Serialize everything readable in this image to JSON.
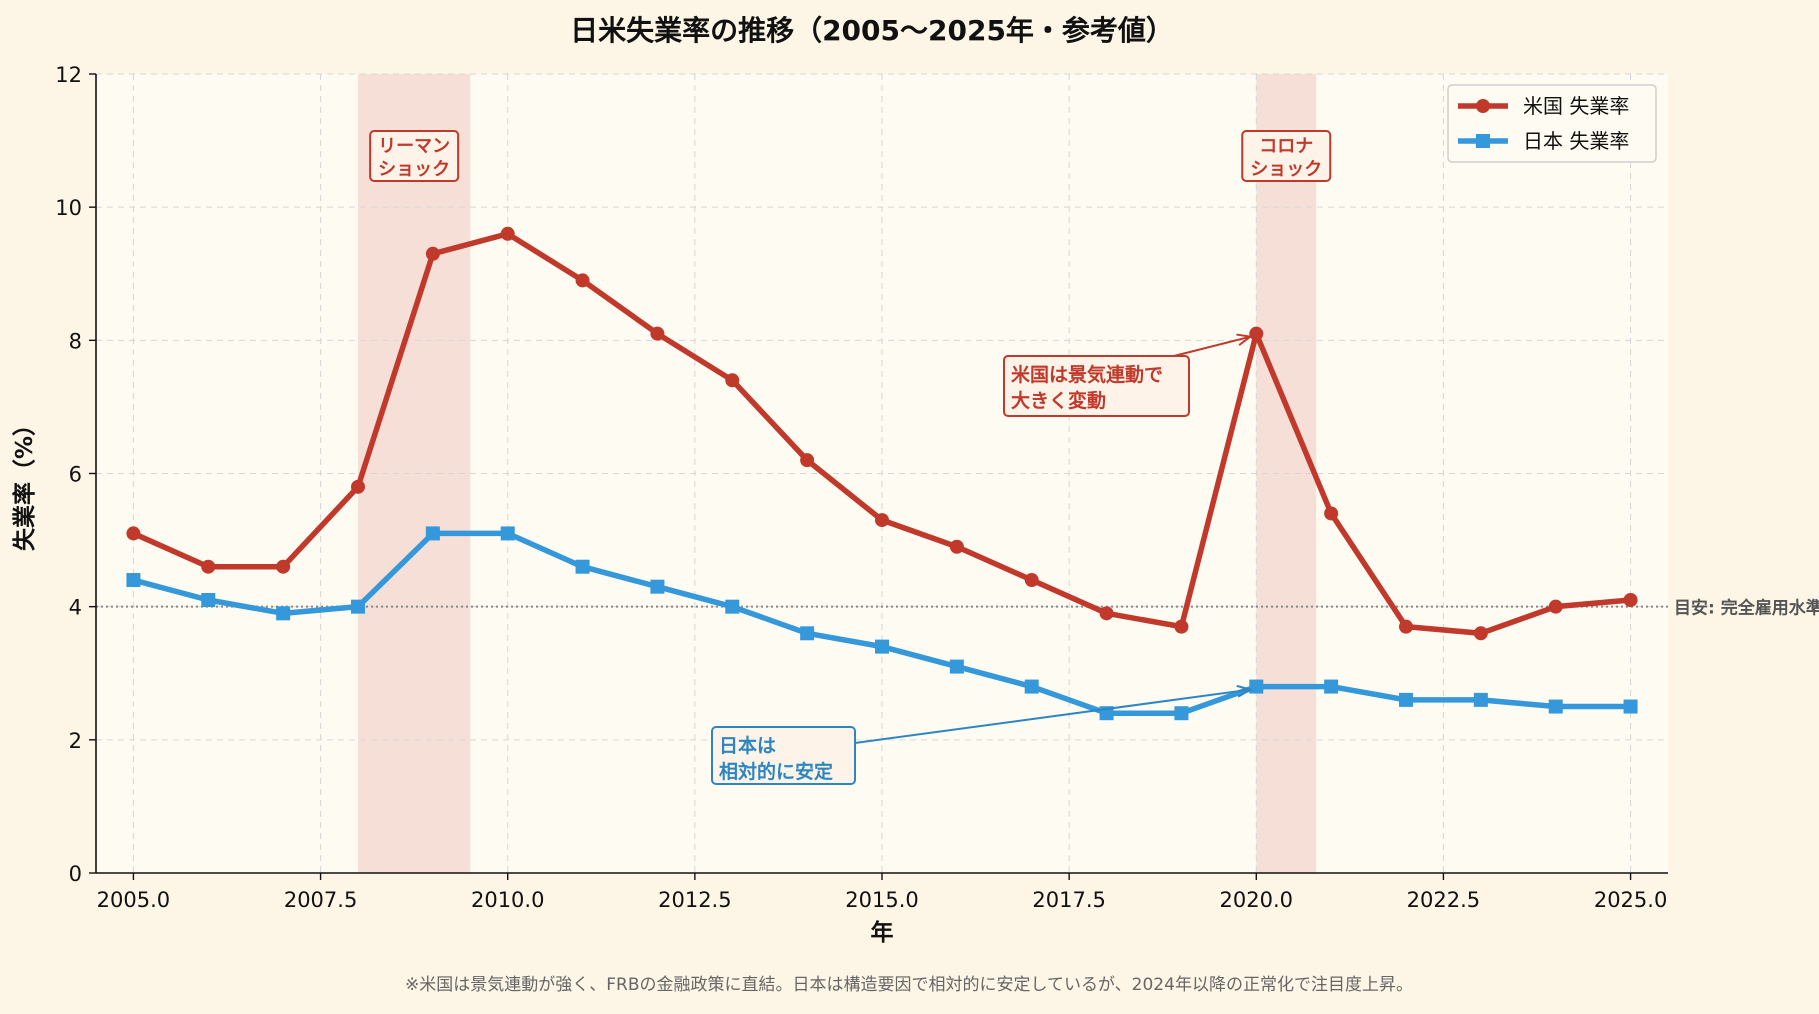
{
  "chart_data": {
    "type": "line",
    "title": "日米失業率の推移（2005〜2025年・参考値）",
    "xlabel": "年",
    "ylabel": "失業率（%）",
    "xlim": [
      2004.5,
      2025.5
    ],
    "ylim": [
      0,
      12
    ],
    "x_ticks": [
      2005.0,
      2007.5,
      2010.0,
      2012.5,
      2015.0,
      2017.5,
      2020.0,
      2022.5,
      2025.0
    ],
    "x_tick_labels": [
      "2005.0",
      "2007.5",
      "2010.0",
      "2012.5",
      "2015.0",
      "2017.5",
      "2020.0",
      "2022.5",
      "2025.0"
    ],
    "y_ticks": [
      0,
      2,
      4,
      6,
      8,
      10,
      12
    ],
    "y_tick_labels": [
      "0",
      "2",
      "4",
      "6",
      "8",
      "10",
      "12"
    ],
    "grid": true,
    "legend_position": "top-right",
    "x": [
      2005,
      2006,
      2007,
      2008,
      2009,
      2010,
      2011,
      2012,
      2013,
      2014,
      2015,
      2016,
      2017,
      2018,
      2019,
      2020,
      2021,
      2022,
      2023,
      2024,
      2025
    ],
    "series": [
      {
        "name": "米国 失業率",
        "color": "#c0392b",
        "marker": "circle",
        "values": [
          5.1,
          4.6,
          4.6,
          5.8,
          9.3,
          9.6,
          8.9,
          8.1,
          7.4,
          6.2,
          5.3,
          4.9,
          4.4,
          3.9,
          3.7,
          8.1,
          5.4,
          3.7,
          3.6,
          4.0,
          4.1
        ]
      },
      {
        "name": "日本 失業率",
        "color": "#3498db",
        "marker": "square",
        "values": [
          4.4,
          4.1,
          3.9,
          4.0,
          5.1,
          5.1,
          4.6,
          4.3,
          4.0,
          3.6,
          3.4,
          3.1,
          2.8,
          2.4,
          2.4,
          2.8,
          2.8,
          2.6,
          2.6,
          2.5,
          2.5
        ]
      }
    ],
    "shaded_regions": [
      {
        "from": 2008.0,
        "to": 2009.5,
        "label_lines": [
          "リーマン",
          "ショック"
        ]
      },
      {
        "from": 2020.0,
        "to": 2020.8,
        "label_lines": [
          "コロナ",
          "ショック"
        ]
      }
    ],
    "reference_line": {
      "y": 4.0,
      "label": "目安: 完全雇用水準"
    },
    "annotations": [
      {
        "series_index": 0,
        "target_x": 2020,
        "lines": [
          "米国は景気連動で",
          "大きく変動"
        ],
        "color": "#c0392b"
      },
      {
        "series_index": 1,
        "target_x": 2020,
        "lines": [
          "日本は",
          "相対的に安定"
        ],
        "color": "#2e86c1"
      }
    ],
    "footnote": "※米国は景気連動が強く、FRBの金融政策に直結。日本は構造要因で相対的に安定しているが、2024年以降の正常化で注目度上昇。"
  }
}
